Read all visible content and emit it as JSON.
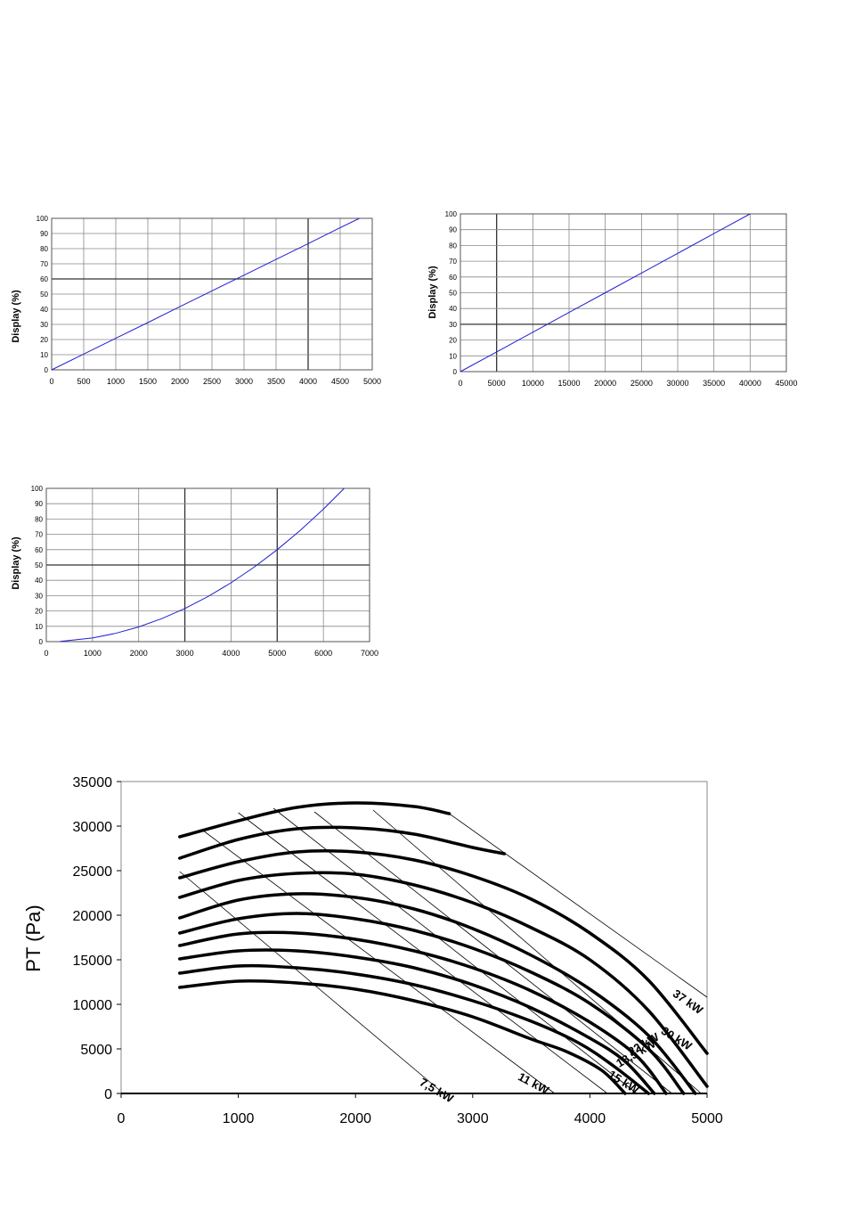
{
  "chart_data": [
    {
      "type": "line",
      "ylabel": "Display (%)",
      "xlim": [
        0,
        5000
      ],
      "ylim": [
        0,
        100
      ],
      "x_ticks": [
        "0",
        "500",
        "1000",
        "1500",
        "2000",
        "2500",
        "3000",
        "3500",
        "4000",
        "4500",
        "5000"
      ],
      "y_ticks": [
        "0",
        "10",
        "20",
        "30",
        "40",
        "50",
        "60",
        "70",
        "80",
        "90",
        "100"
      ],
      "grid": true,
      "series": [
        {
          "color": "#2020d0",
          "points": [
            [
              0,
              0
            ],
            [
              500,
              10.4
            ],
            [
              1000,
              20.8
            ],
            [
              1500,
              31.2
            ],
            [
              2000,
              41.7
            ],
            [
              2500,
              52.1
            ],
            [
              3000,
              62.5
            ],
            [
              3500,
              72.9
            ],
            [
              4000,
              83.3
            ],
            [
              4500,
              93.8
            ],
            [
              4800,
              100
            ]
          ]
        }
      ]
    },
    {
      "type": "line",
      "ylabel": "Display (%)",
      "xlim": [
        0,
        45000
      ],
      "ylim": [
        0,
        100
      ],
      "x_ticks": [
        "0",
        "5000",
        "10000",
        "15000",
        "20000",
        "25000",
        "30000",
        "35000",
        "40000",
        "45000"
      ],
      "y_ticks": [
        "0",
        "10",
        "20",
        "30",
        "40",
        "50",
        "60",
        "70",
        "80",
        "90",
        "100"
      ],
      "grid": true,
      "series": [
        {
          "color": "#2020d0",
          "points": [
            [
              0,
              0
            ],
            [
              5000,
              12.5
            ],
            [
              10000,
              25
            ],
            [
              15000,
              37.5
            ],
            [
              20000,
              50
            ],
            [
              25000,
              62.5
            ],
            [
              30000,
              75
            ],
            [
              35000,
              87.5
            ],
            [
              40000,
              100
            ]
          ]
        }
      ]
    },
    {
      "type": "line",
      "ylabel": "Display (%)",
      "xlim": [
        0,
        7000
      ],
      "ylim": [
        0,
        100
      ],
      "x_ticks": [
        "0",
        "1000",
        "2000",
        "3000",
        "4000",
        "5000",
        "6000",
        "7000"
      ],
      "y_ticks": [
        "0",
        "10",
        "20",
        "30",
        "40",
        "50",
        "60",
        "70",
        "80",
        "90",
        "100"
      ],
      "grid": true,
      "series": [
        {
          "color": "#2020d0",
          "points": [
            [
              300,
              0.2
            ],
            [
              1000,
              2.4
            ],
            [
              1500,
              5.4
            ],
            [
              2000,
              9.6
            ],
            [
              2500,
              15
            ],
            [
              3000,
              21.6
            ],
            [
              3500,
              29.4
            ],
            [
              4000,
              38.4
            ],
            [
              4500,
              48.6
            ],
            [
              5000,
              60
            ],
            [
              5500,
              72.6
            ],
            [
              6000,
              86.4
            ],
            [
              6450,
              100
            ]
          ]
        }
      ]
    },
    {
      "type": "line",
      "ylabel": "PT (Pa)",
      "xlim": [
        0,
        5000
      ],
      "ylim": [
        0,
        35000
      ],
      "x_ticks": [
        "0",
        "1000",
        "2000",
        "3000",
        "4000",
        "5000"
      ],
      "y_ticks": [
        "0",
        "5000",
        "10000",
        "15000",
        "20000",
        "25000",
        "30000",
        "35000"
      ],
      "grid": false,
      "fan_curves": [
        {
          "points": [
            [
              500,
              11900
            ],
            [
              1000,
              12600
            ],
            [
              1500,
              12400
            ],
            [
              2000,
              11700
            ],
            [
              2500,
              10400
            ],
            [
              3000,
              8600
            ],
            [
              3500,
              6100
            ],
            [
              3800,
              4700
            ],
            [
              4100,
              2600
            ],
            [
              4300,
              0
            ]
          ]
        },
        {
          "points": [
            [
              500,
              13500
            ],
            [
              1000,
              14300
            ],
            [
              1500,
              14100
            ],
            [
              2000,
              13400
            ],
            [
              2500,
              12200
            ],
            [
              3000,
              10400
            ],
            [
              3500,
              8100
            ],
            [
              3900,
              5700
            ],
            [
              4200,
              3100
            ],
            [
              4500,
              0
            ]
          ]
        },
        {
          "points": [
            [
              500,
              15100
            ],
            [
              1000,
              16000
            ],
            [
              1500,
              16000
            ],
            [
              2000,
              15300
            ],
            [
              2500,
              14100
            ],
            [
              3000,
              12200
            ],
            [
              3500,
              9600
            ],
            [
              4000,
              6200
            ],
            [
              4300,
              3600
            ],
            [
              4550,
              0
            ]
          ]
        },
        {
          "points": [
            [
              500,
              16600
            ],
            [
              1000,
              17900
            ],
            [
              1500,
              18000
            ],
            [
              2000,
              17300
            ],
            [
              2500,
              16000
            ],
            [
              3000,
              14100
            ],
            [
              3500,
              11500
            ],
            [
              4000,
              8000
            ],
            [
              4400,
              4200
            ],
            [
              4650,
              0
            ]
          ]
        },
        {
          "points": [
            [
              500,
              18000
            ],
            [
              1000,
              19600
            ],
            [
              1500,
              20200
            ],
            [
              2000,
              19600
            ],
            [
              2500,
              18300
            ],
            [
              3000,
              16300
            ],
            [
              3500,
              13600
            ],
            [
              4000,
              10100
            ],
            [
              4500,
              5000
            ],
            [
              4800,
              0
            ]
          ]
        },
        {
          "points": [
            [
              500,
              19700
            ],
            [
              1000,
              21700
            ],
            [
              1500,
              22400
            ],
            [
              2000,
              22000
            ],
            [
              2500,
              20700
            ],
            [
              3000,
              18500
            ],
            [
              3500,
              15500
            ],
            [
              4000,
              11700
            ],
            [
              4500,
              6500
            ],
            [
              4900,
              0
            ]
          ]
        },
        {
          "points": [
            [
              500,
              22000
            ],
            [
              1000,
              23900
            ],
            [
              1500,
              24700
            ],
            [
              2000,
              24600
            ],
            [
              2500,
              23400
            ],
            [
              3000,
              21400
            ],
            [
              3500,
              18600
            ],
            [
              4000,
              15000
            ],
            [
              4500,
              9300
            ],
            [
              5000,
              800
            ]
          ]
        },
        {
          "points": [
            [
              500,
              24200
            ],
            [
              1000,
              26000
            ],
            [
              1500,
              27100
            ],
            [
              2000,
              27100
            ],
            [
              2500,
              26200
            ],
            [
              3000,
              24400
            ],
            [
              3500,
              21800
            ],
            [
              4000,
              18000
            ],
            [
              4500,
              12700
            ],
            [
              5000,
              4500
            ]
          ]
        },
        {
          "points": [
            [
              500,
              26400
            ],
            [
              1000,
              28500
            ],
            [
              1500,
              29700
            ],
            [
              2000,
              29800
            ],
            [
              2500,
              29100
            ],
            [
              3000,
              27600
            ],
            [
              3270,
              26900
            ]
          ]
        },
        {
          "points": [
            [
              500,
              28800
            ],
            [
              1000,
              30600
            ],
            [
              1500,
              32100
            ],
            [
              2000,
              32600
            ],
            [
              2500,
              32200
            ],
            [
              2800,
              31400
            ]
          ]
        }
      ],
      "power_lines": [
        {
          "label": "7,5 kW",
          "points": [
            [
              500,
              24900
            ],
            [
              2750,
              0
            ]
          ]
        },
        {
          "label": "11 kW",
          "points": [
            [
              700,
              29500
            ],
            [
              3700,
              0
            ]
          ]
        },
        {
          "label": "15 kW",
          "points": [
            [
              1000,
              31500
            ],
            [
              4150,
              0
            ]
          ]
        },
        {
          "label": "18,5 kW",
          "points": [
            [
              1300,
              32000
            ],
            [
              4400,
              0
            ]
          ]
        },
        {
          "label": "22 kW",
          "points": [
            [
              1650,
              31600
            ],
            [
              4700,
              0
            ]
          ]
        },
        {
          "label": "30 kW",
          "points": [
            [
              2150,
              31800
            ],
            [
              4950,
              0
            ]
          ]
        },
        {
          "label": "37 kW",
          "points": [
            [
              2800,
              31400
            ],
            [
              5000,
              10800
            ]
          ]
        }
      ],
      "power_labels": [
        "37 kW",
        "30 kW",
        "22 kW",
        "18,5 kW",
        "15 kW",
        "11 kW",
        "7,5 kW"
      ]
    }
  ]
}
